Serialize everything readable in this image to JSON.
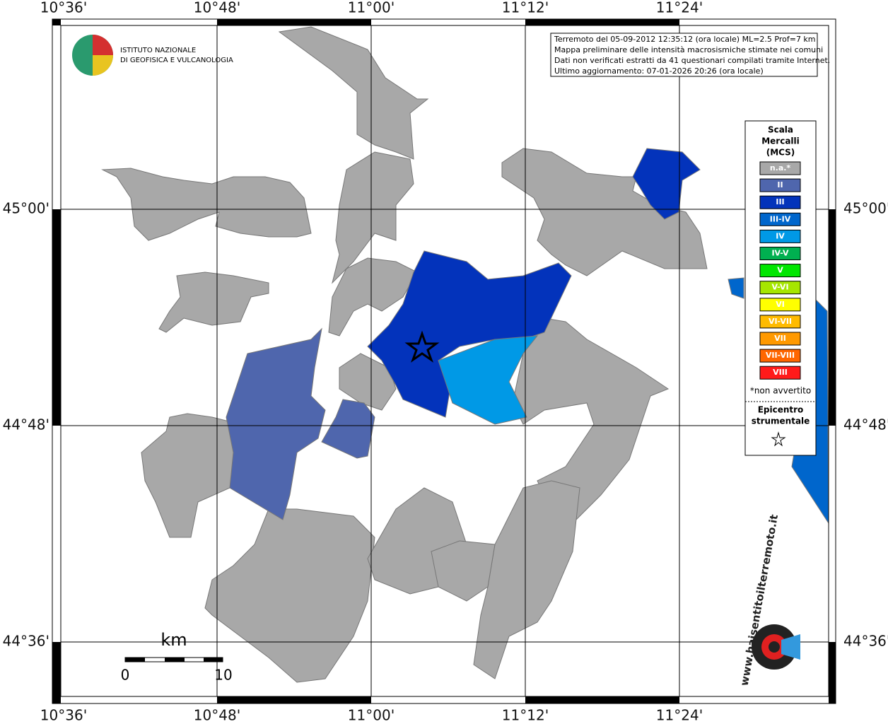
{
  "header": {
    "lines": [
      "Terremoto del 05-09-2012 12:35:12 (ora locale) ML=2.5 Prof=7 km",
      "Mappa preliminare delle intensità macrosismiche stimate nei comuni",
      "Dati non verificati estratti da 41 questionari compilati tramite Internet.",
      "Ultimo aggiornamento: 07-01-2026 20:26 (ora locale)"
    ]
  },
  "logo": {
    "lines": [
      "ISTITUTO NAZIONALE",
      "DI GEOFISICA E VULCANOLOGIA"
    ]
  },
  "axes": {
    "lon_labels": [
      "10°36'",
      "10°48'",
      "11°00'",
      "11°12'",
      "11°24'"
    ],
    "lat_labels": [
      "45°00'",
      "44°48'",
      "44°36'"
    ]
  },
  "legend": {
    "title": [
      "Scala",
      "Mercalli",
      "(MCS)"
    ],
    "items": [
      {
        "label": "n.a.*",
        "color": "#a8a8a8"
      },
      {
        "label": "II",
        "color": "#4f66ad"
      },
      {
        "label": "III",
        "color": "#0333bb"
      },
      {
        "label": "III-IV",
        "color": "#0066cc"
      },
      {
        "label": "IV",
        "color": "#0099e6"
      },
      {
        "label": "IV-V",
        "color": "#00b050"
      },
      {
        "label": "V",
        "color": "#00e600"
      },
      {
        "label": "V-VI",
        "color": "#a6e600"
      },
      {
        "label": "VI",
        "color": "#ffff00"
      },
      {
        "label": "VI-VII",
        "color": "#ffbb00"
      },
      {
        "label": "VII",
        "color": "#ff9900"
      },
      {
        "label": "VII-VIII",
        "color": "#ff6600"
      },
      {
        "label": "VIII",
        "color": "#ff1a1a"
      }
    ],
    "note": "*non avvertito",
    "epicenter_title": [
      "Epicentro",
      "strumentale"
    ]
  },
  "scale": {
    "unit": "km",
    "labels": [
      "0",
      "10"
    ]
  },
  "brand": "www.haisentitoilterremoto.it"
}
